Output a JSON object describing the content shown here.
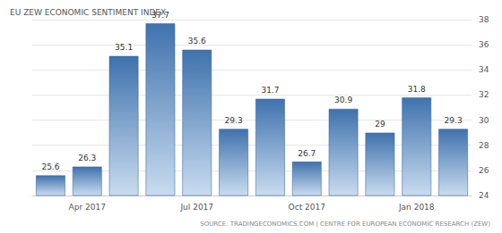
{
  "chart_data": {
    "type": "bar",
    "title": "EU ZEW ECONOMIC SENTIMENT INDEX",
    "source": "SOURCE: TRADINGECONOMICS.COM | CENTRE FOR EUROPEAN ECONOMIC RESEARCH (ZEW)",
    "categories": [
      null,
      "Apr 2017",
      null,
      null,
      "Jul 2017",
      null,
      null,
      "Oct 2017",
      null,
      null,
      "Jan 2018",
      null
    ],
    "values": [
      25.6,
      26.3,
      35.1,
      37.7,
      35.6,
      29.3,
      31.7,
      26.7,
      30.9,
      29,
      31.8,
      29.3
    ],
    "color": "#3f72ad",
    "ylim": [
      24,
      38
    ],
    "yticks": [
      24,
      26,
      28,
      30,
      32,
      34,
      36,
      38
    ],
    "grid": true,
    "data_labels": true
  }
}
